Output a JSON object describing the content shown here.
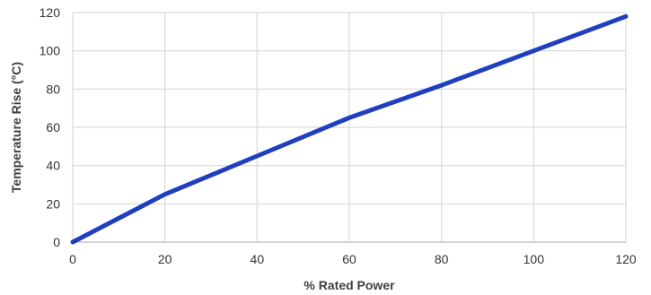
{
  "chart_data": {
    "type": "line",
    "title": "",
    "xlabel": "% Rated Power",
    "ylabel": "Temperature Rise (°C)",
    "xlim": [
      0,
      120
    ],
    "ylim": [
      0,
      120
    ],
    "x_ticks": [
      0,
      20,
      40,
      60,
      80,
      100,
      120
    ],
    "y_ticks": [
      0,
      20,
      40,
      60,
      80,
      100,
      120
    ],
    "grid": true,
    "legend": "none",
    "series": [
      {
        "color": "#1f3fbf",
        "x": [
          0,
          20,
          40,
          60,
          80,
          100,
          120
        ],
        "y": [
          0,
          25,
          45,
          65,
          82,
          100,
          118
        ]
      }
    ]
  }
}
